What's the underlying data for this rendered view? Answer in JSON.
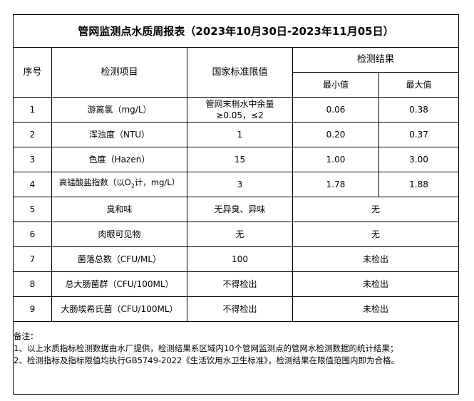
{
  "title": "管网监测点水质周报表（2023年10月30日-2023年11月05日）",
  "headers": {
    "index": "序号",
    "item": "检测项目",
    "standard": "国家标准限值",
    "result": "检测结果",
    "min": "最小值",
    "max": "最大值"
  },
  "rows": [
    {
      "index": "1",
      "item": "游离氯（mg/L）",
      "standard": "管网末梢水中余量≥0.05，≤2",
      "min": "0.06",
      "max": "0.38"
    },
    {
      "index": "2",
      "item": "浑浊度（NTU）",
      "standard": "1",
      "min": "0.20",
      "max": "0.37"
    },
    {
      "index": "3",
      "item": "色度（Hazen）",
      "standard": "15",
      "min": "1.00",
      "max": "3.00"
    },
    {
      "index": "4",
      "item_pre": "高锰酸盐指数（以O",
      "item_sub": "2",
      "item_post": "计，mg/L）",
      "standard": "3",
      "min": "1.78",
      "max": "1.88"
    },
    {
      "index": "5",
      "item": "臭和味",
      "standard": "无异臭、异味",
      "result": "无"
    },
    {
      "index": "6",
      "item": "肉眼可见物",
      "standard": "无",
      "result": "无"
    },
    {
      "index": "7",
      "item": "菌落总数（CFU/ML）",
      "standard": "100",
      "result": "未检出"
    },
    {
      "index": "8",
      "item": "总大肠菌群（CFU/100ML）",
      "standard": "不得检出",
      "result": "未检出"
    },
    {
      "index": "9",
      "item": "大肠埃希氏菌（CFU/100ML）",
      "standard": "不得检出",
      "result": "未检出"
    }
  ],
  "notes": {
    "label": "备注：",
    "line1": "1、以上水质指标检测数据由水厂提供，检测结果系区域内10个管网监测点的管网水检测数据的统计结果；",
    "line2": "2、检测指标及指标限值均执行GB5749-2022《生活饮用水卫生标准》，检测结果在限值范围内即为合格。"
  }
}
